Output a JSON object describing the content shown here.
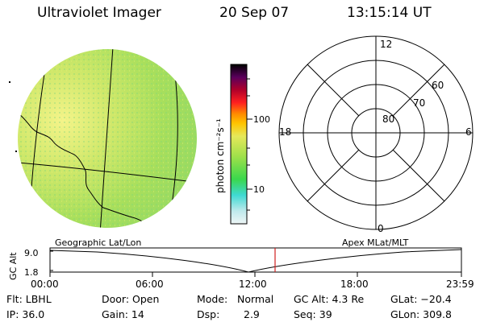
{
  "header": {
    "instrument": "Ultraviolet Imager",
    "date": "20 Sep 07",
    "time": "13:15:14 UT"
  },
  "colorbar": {
    "label": "photon cm⁻²s⁻¹",
    "ticks": [
      "100",
      "10"
    ]
  },
  "polar_plot": {
    "latitude_labels": [
      "80",
      "70",
      "60"
    ],
    "mlt_labels": {
      "top": "12",
      "left": "18",
      "right": "6",
      "bottom": "0"
    }
  },
  "altitude_panel": {
    "left_title": "Geographic Lat/Lon",
    "right_title": "Apex MLat/MLT",
    "ylabel": "GC Alt",
    "yticks": [
      "9.0",
      "1.8"
    ],
    "xticks": [
      "00:00",
      "06:00",
      "12:00",
      "18:00",
      "23:59"
    ],
    "marker_color": "#d02020"
  },
  "info": {
    "flt": "Flt: LBHL",
    "ip": "IP: 36.0",
    "door": "Door: Open",
    "gain": "Gain: 14",
    "mode_label": "Mode:",
    "mode_value": "Normal",
    "dsp_label": "Dsp:",
    "dsp_value": "2.9",
    "gc_alt": "GC Alt: 4.3 Re",
    "seq": "Seq: 39",
    "glat": "GLat: −20.4",
    "glon": "GLon: 309.8"
  },
  "colors": {
    "image_base": "#a6e05a",
    "image_bright": "#f0f27a",
    "colorbar_stops": [
      "#e8f2f4",
      "#3fd9d2",
      "#39d84a",
      "#9ee04a",
      "#e8e85a",
      "#ffa400",
      "#ff2020",
      "#b0002a",
      "#4a004c",
      "#000000"
    ]
  }
}
